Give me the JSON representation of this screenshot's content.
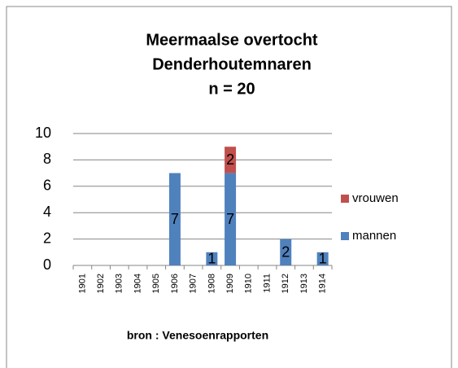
{
  "chart_data": {
    "type": "stacked_bar",
    "title": [
      "Meermaalse overtocht",
      "Denderhoutemnaren",
      "n = 20"
    ],
    "xlabel": "bron : Venesoenrapporten",
    "categories": [
      "1901",
      "1902",
      "1903",
      "1904",
      "1905",
      "1906",
      "1907",
      "1908",
      "1909",
      "1910",
      "1911",
      "1912",
      "1913",
      "1914"
    ],
    "series": [
      {
        "name": "mannen",
        "color": "#4f81bd",
        "values": [
          null,
          null,
          null,
          null,
          null,
          7,
          null,
          1,
          7,
          null,
          null,
          2,
          null,
          1
        ]
      },
      {
        "name": "vrouwen",
        "color": "#c0504d",
        "values": [
          null,
          null,
          null,
          null,
          null,
          null,
          null,
          null,
          2,
          null,
          null,
          null,
          null,
          null
        ]
      }
    ],
    "ylim": [
      0,
      10
    ],
    "yticks": [
      0,
      2,
      4,
      6,
      8,
      10
    ],
    "grid": true,
    "legend": "right"
  }
}
